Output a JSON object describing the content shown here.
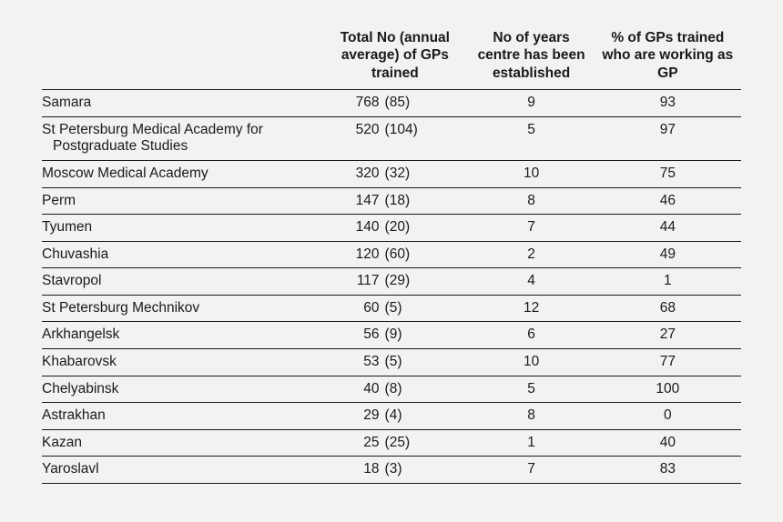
{
  "headers": {
    "name": "",
    "total": "Total No (annual average) of GPs trained",
    "years": "No of years centre has been established",
    "pct": "% of GPs trained who are working as GP"
  },
  "rows": [
    {
      "name": "Samara",
      "name2": "",
      "total": "768",
      "avg": "(85)",
      "years": "9",
      "pct": "93"
    },
    {
      "name": "St Petersburg Medical Academy for",
      "name2": "Postgraduate Studies",
      "total": "520",
      "avg": "(104)",
      "years": "5",
      "pct": "97"
    },
    {
      "name": "Moscow Medical Academy",
      "name2": "",
      "total": "320",
      "avg": "(32)",
      "years": "10",
      "pct": "75"
    },
    {
      "name": "Perm",
      "name2": "",
      "total": "147",
      "avg": "(18)",
      "years": "8",
      "pct": "46"
    },
    {
      "name": "Tyumen",
      "name2": "",
      "total": "140",
      "avg": "(20)",
      "years": "7",
      "pct": "44"
    },
    {
      "name": "Chuvashia",
      "name2": "",
      "total": "120",
      "avg": "(60)",
      "years": "2",
      "pct": "49"
    },
    {
      "name": "Stavropol",
      "name2": "",
      "total": "117",
      "avg": "(29)",
      "years": "4",
      "pct": "1"
    },
    {
      "name": "St Petersburg Mechnikov",
      "name2": "",
      "total": "60",
      "avg": "(5)",
      "years": "12",
      "pct": "68"
    },
    {
      "name": "Arkhangelsk",
      "name2": "",
      "total": "56",
      "avg": "(9)",
      "years": "6",
      "pct": "27"
    },
    {
      "name": "Khabarovsk",
      "name2": "",
      "total": "53",
      "avg": "(5)",
      "years": "10",
      "pct": "77"
    },
    {
      "name": "Chelyabinsk",
      "name2": "",
      "total": "40",
      "avg": "(8)",
      "years": "5",
      "pct": "100"
    },
    {
      "name": "Astrakhan",
      "name2": "",
      "total": "29",
      "avg": "(4)",
      "years": "8",
      "pct": "0"
    },
    {
      "name": "Kazan",
      "name2": "",
      "total": "25",
      "avg": "(25)",
      "years": "1",
      "pct": "40"
    },
    {
      "name": "Yaroslavl",
      "name2": "",
      "total": "18",
      "avg": "(3)",
      "years": "7",
      "pct": "83"
    }
  ]
}
